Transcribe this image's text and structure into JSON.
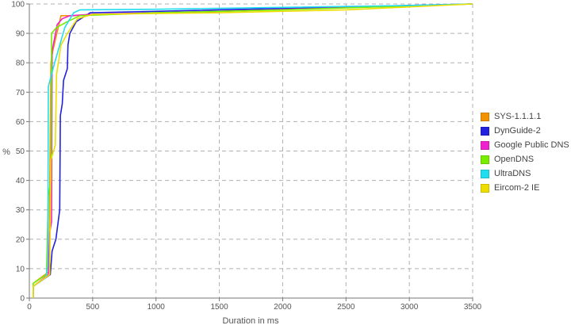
{
  "chart_data": {
    "type": "line",
    "title": "",
    "xlabel": "Duration in ms",
    "ylabel": "%",
    "xlim": [
      0,
      3500
    ],
    "ylim": [
      0,
      100
    ],
    "xticks": [
      0,
      500,
      1000,
      1500,
      2000,
      2500,
      3000,
      3500
    ],
    "yticks": [
      0,
      10,
      20,
      30,
      40,
      50,
      60,
      70,
      80,
      90,
      100
    ],
    "grid": true,
    "legend_position": "right",
    "series": [
      {
        "name": "SYS-1.1.1.1",
        "color": "#f39200",
        "points": [
          [
            30,
            0
          ],
          [
            30,
            5
          ],
          [
            155,
            9
          ],
          [
            170,
            80
          ],
          [
            185,
            84
          ],
          [
            250,
            96
          ],
          [
            350,
            96
          ],
          [
            500,
            96.5
          ],
          [
            1500,
            97.5
          ],
          [
            3500,
            100
          ]
        ]
      },
      {
        "name": "DynGuide-2",
        "color": "#2222dd",
        "points": [
          [
            30,
            0
          ],
          [
            30,
            4
          ],
          [
            165,
            8
          ],
          [
            180,
            16
          ],
          [
            210,
            20
          ],
          [
            240,
            30
          ],
          [
            245,
            62
          ],
          [
            260,
            66
          ],
          [
            270,
            74
          ],
          [
            300,
            78
          ],
          [
            305,
            86
          ],
          [
            320,
            90
          ],
          [
            370,
            94
          ],
          [
            480,
            97
          ],
          [
            1000,
            97.5
          ],
          [
            2000,
            98.5
          ],
          [
            3500,
            100
          ]
        ]
      },
      {
        "name": "Google Public DNS",
        "color": "#ee22cc",
        "points": [
          [
            30,
            0
          ],
          [
            30,
            4
          ],
          [
            150,
            8
          ],
          [
            160,
            22
          ],
          [
            175,
            26
          ],
          [
            180,
            84
          ],
          [
            220,
            93
          ],
          [
            260,
            95
          ],
          [
            320,
            96
          ],
          [
            500,
            96.5
          ],
          [
            1500,
            97.5
          ],
          [
            3500,
            100
          ]
        ]
      },
      {
        "name": "OpenDNS",
        "color": "#77ee00",
        "points": [
          [
            30,
            0
          ],
          [
            30,
            5
          ],
          [
            135,
            8
          ],
          [
            150,
            35
          ],
          [
            170,
            40
          ],
          [
            175,
            90
          ],
          [
            215,
            92
          ],
          [
            300,
            94
          ],
          [
            400,
            96
          ],
          [
            1000,
            97
          ],
          [
            2000,
            98
          ],
          [
            3500,
            100
          ]
        ]
      },
      {
        "name": "UltraDNS",
        "color": "#22ddee",
        "points": [
          [
            30,
            0
          ],
          [
            30,
            4
          ],
          [
            130,
            7
          ],
          [
            145,
            11
          ],
          [
            150,
            72
          ],
          [
            200,
            80
          ],
          [
            280,
            92
          ],
          [
            350,
            97
          ],
          [
            400,
            98
          ],
          [
            1000,
            98.2
          ],
          [
            3000,
            99.5
          ],
          [
            3500,
            100
          ]
        ]
      },
      {
        "name": "Eircom-2 IE",
        "color": "#eedd00",
        "points": [
          [
            30,
            0
          ],
          [
            30,
            4
          ],
          [
            160,
            8
          ],
          [
            170,
            47
          ],
          [
            205,
            52
          ],
          [
            215,
            76
          ],
          [
            250,
            86
          ],
          [
            300,
            90
          ],
          [
            380,
            95
          ],
          [
            500,
            96.5
          ],
          [
            1500,
            97
          ],
          [
            2500,
            98
          ],
          [
            3500,
            100
          ]
        ]
      }
    ]
  }
}
